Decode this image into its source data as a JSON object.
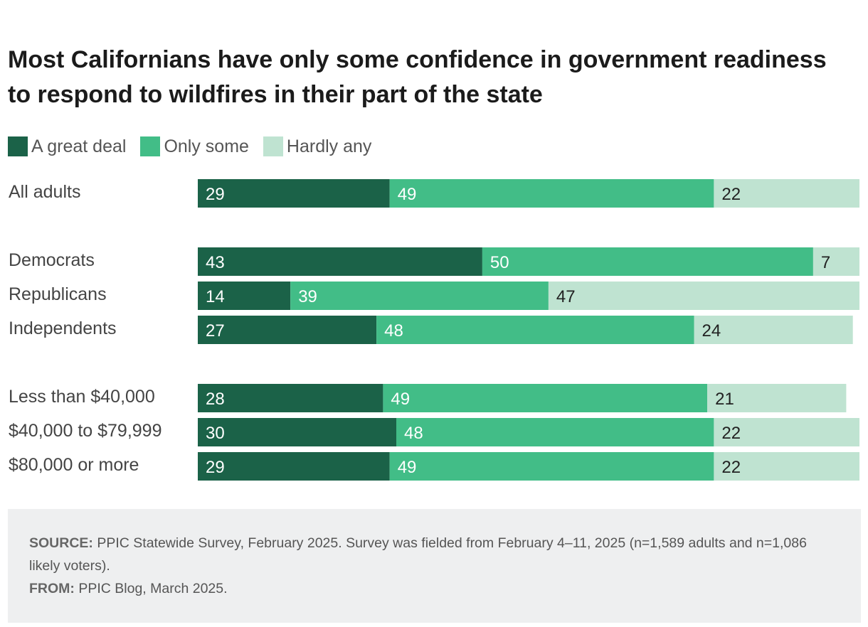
{
  "title": "Most Californians have only some confidence in government readiness to respond to wildfires in their part of the state",
  "colors": {
    "a_great_deal": "#1b6248",
    "only_some": "#42bd87",
    "hardly_any": "#bfe3d1",
    "label_on_dark": "#ffffff",
    "label_on_light": "#222222"
  },
  "legend": [
    {
      "label": "A great deal",
      "color": "#1b6248"
    },
    {
      "label": "Only some",
      "color": "#42bd87"
    },
    {
      "label": "Hardly any",
      "color": "#bfe3d1"
    }
  ],
  "chart_data": {
    "type": "bar",
    "orientation": "horizontal",
    "stacked": true,
    "title": "Most Californians have only some confidence in government readiness to respond to wildfires in their part of the state",
    "categories": [
      "All adults",
      "Democrats",
      "Republicans",
      "Independents",
      "Less than $40,000",
      "$40,000 to $79,999",
      "$80,000 or more"
    ],
    "groups": [
      [
        "All adults"
      ],
      [
        "Democrats",
        "Republicans",
        "Independents"
      ],
      [
        "Less than $40,000",
        "$40,000 to $79,999",
        "$80,000 or more"
      ]
    ],
    "series": [
      {
        "name": "A great deal",
        "values": [
          29,
          43,
          14,
          27,
          28,
          30,
          29
        ]
      },
      {
        "name": "Only some",
        "values": [
          49,
          50,
          39,
          48,
          49,
          48,
          49
        ]
      },
      {
        "name": "Hardly any",
        "values": [
          22,
          7,
          47,
          24,
          21,
          22,
          22
        ]
      }
    ],
    "xlim": [
      0,
      100
    ],
    "grid": false,
    "legend_position": "top-left"
  },
  "footer": {
    "source_label": "SOURCE:",
    "source_text": "PPIC Statewide Survey, February 2025. Survey was fielded from February 4–11, 2025 (n=1,589 adults and n=1,086 likely voters).",
    "from_label": "FROM:",
    "from_text": "PPIC Blog, March 2025."
  }
}
